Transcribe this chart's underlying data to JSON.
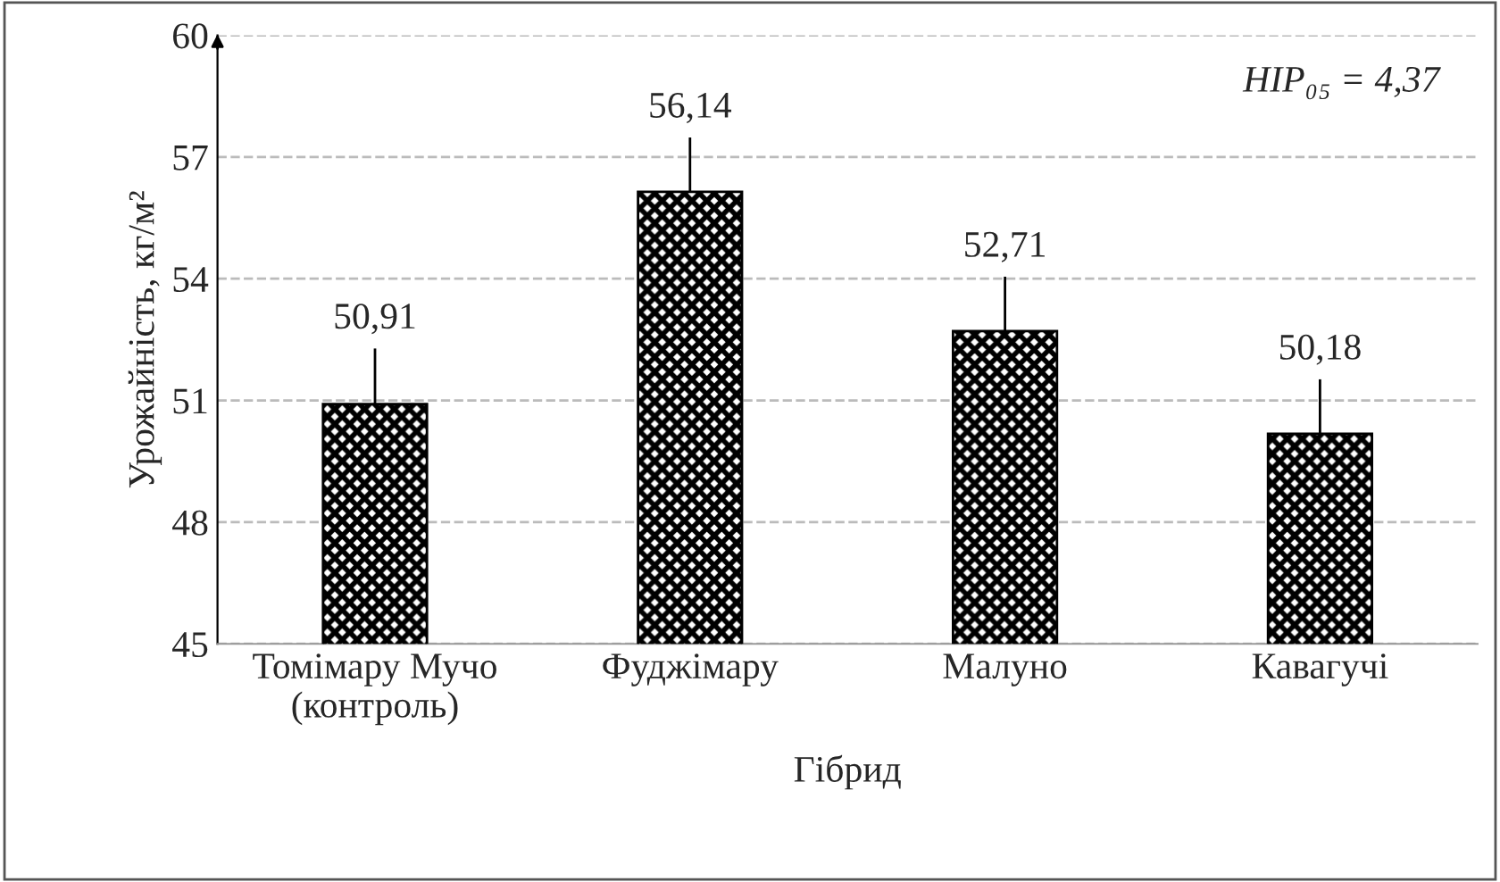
{
  "chart_data": {
    "type": "bar",
    "categories": [
      "Томімару Мучо\n(контроль)",
      "Фуджімару",
      "Малуно",
      "Кавагучі"
    ],
    "values": [
      50.91,
      56.14,
      52.71,
      50.18
    ],
    "errors": [
      [
        50.91,
        52.28
      ],
      [
        56.14,
        57.48
      ],
      [
        52.71,
        54.05
      ],
      [
        50.18,
        51.52
      ]
    ],
    "color": "#000000",
    "value_labels": [
      "50,91",
      "56,14",
      "52,71",
      "50,18"
    ],
    "xlabel": "Гібрид",
    "ylabel": "Урожайність, кг/м²",
    "annotations": [
      "НІР₀₅ = 4,37"
    ],
    "ylim": [
      45,
      60
    ],
    "yticks": [
      45,
      48,
      51,
      54,
      57,
      60
    ],
    "grid": "y"
  }
}
